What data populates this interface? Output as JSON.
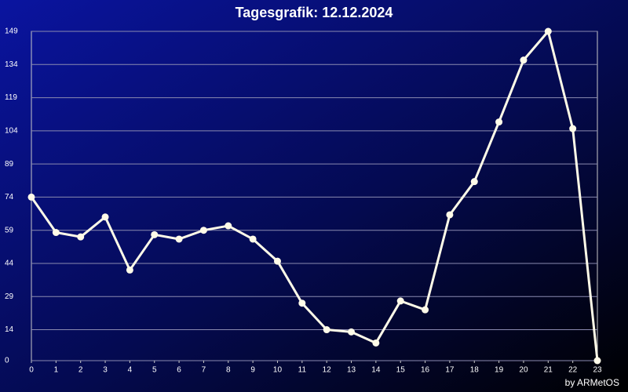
{
  "chart_data": {
    "type": "line",
    "title": "Tagesgrafik: 12.12.2024",
    "credit": "by ARMetOS",
    "x": [
      0,
      1,
      2,
      3,
      4,
      5,
      6,
      7,
      8,
      9,
      10,
      11,
      12,
      13,
      14,
      15,
      16,
      17,
      18,
      19,
      20,
      21,
      22,
      23
    ],
    "series": [
      {
        "color": "#fffbe8",
        "values": [
          74,
          58,
          56,
          65,
          41,
          57,
          55,
          59,
          61,
          55,
          45,
          26,
          14,
          13,
          8,
          27,
          23,
          66,
          81,
          108,
          136,
          149,
          105,
          0
        ]
      }
    ],
    "xlim": [
      0,
      23
    ],
    "xticks": [
      0,
      1,
      2,
      3,
      4,
      5,
      6,
      7,
      8,
      9,
      10,
      11,
      12,
      13,
      14,
      15,
      16,
      17,
      18,
      19,
      20,
      21,
      22,
      23
    ],
    "ylim": [
      0,
      149
    ],
    "yticks": [
      0,
      14,
      29,
      44,
      59,
      74,
      89,
      104,
      119,
      134,
      149
    ],
    "grid": true
  }
}
